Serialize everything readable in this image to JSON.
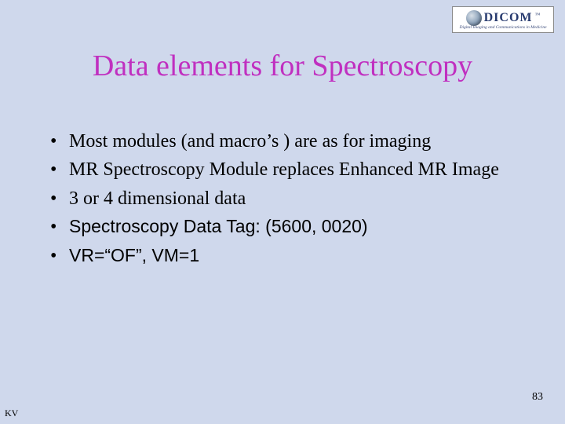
{
  "logo": {
    "brand": "DICOM",
    "tm": "™",
    "tagline": "Digital Imaging and Communications in Medicine"
  },
  "title": "Data elements for Spectroscopy",
  "bullets": [
    {
      "text": "Most modules (and macro’s ) are as for imaging",
      "font": "serif"
    },
    {
      "text": "MR Spectroscopy Module replaces Enhanced MR Image",
      "font": "serif"
    },
    {
      "text": "3 or 4 dimensional data",
      "font": "serif"
    },
    {
      "text": "Spectroscopy Data   Tag: (5600, 0020)",
      "font": "sans"
    },
    {
      "text": "VR=“OF”, VM=1",
      "font": "sans"
    }
  ],
  "page_number": "83",
  "footer_left": "KV",
  "colors": {
    "background": "#cfd8ec",
    "title": "#c030c0",
    "text": "#000000"
  }
}
